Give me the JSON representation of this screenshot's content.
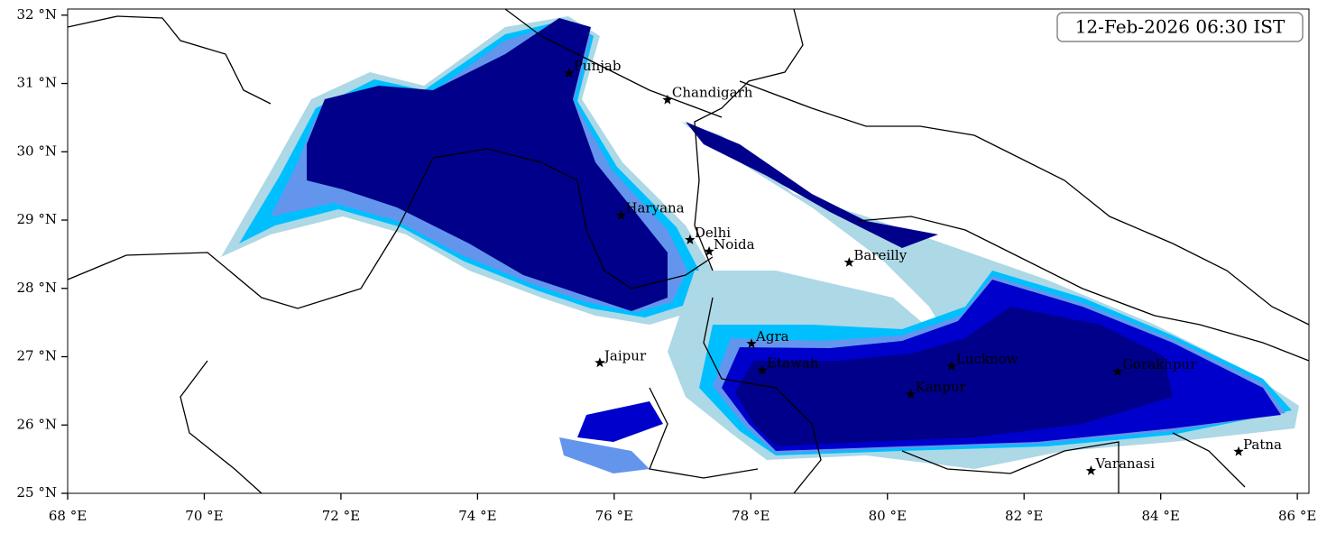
{
  "map": {
    "timestamp": "12-Feb-2026 06:30 IST",
    "xlim": [
      68,
      86.17
    ],
    "ylim": [
      25,
      32.09
    ],
    "xticks": [
      {
        "value": 68,
        "label": "68 °E"
      },
      {
        "value": 70,
        "label": "70 °E"
      },
      {
        "value": 72,
        "label": "72 °E"
      },
      {
        "value": 74,
        "label": "74 °E"
      },
      {
        "value": 76,
        "label": "76 °E"
      },
      {
        "value": 78,
        "label": "78 °E"
      },
      {
        "value": 80,
        "label": "80 °E"
      },
      {
        "value": 82,
        "label": "82 °E"
      },
      {
        "value": 84,
        "label": "84 °E"
      },
      {
        "value": 86,
        "label": "86 °E"
      }
    ],
    "yticks": [
      {
        "value": 25,
        "label": "25 °N"
      },
      {
        "value": 26,
        "label": "26 °N"
      },
      {
        "value": 27,
        "label": "27 °N"
      },
      {
        "value": 28,
        "label": "28 °N"
      },
      {
        "value": 29,
        "label": "29 °N"
      },
      {
        "value": 30,
        "label": "30 °N"
      },
      {
        "value": 31,
        "label": "31 °N"
      },
      {
        "value": 32,
        "label": "32 °N"
      }
    ],
    "cities": [
      {
        "name": "Punjab",
        "lon": 75.34,
        "lat": 31.15
      },
      {
        "name": "Chandigarh",
        "lon": 76.78,
        "lat": 30.76
      },
      {
        "name": "Haryana",
        "lon": 76.1,
        "lat": 29.07
      },
      {
        "name": "Delhi",
        "lon": 77.11,
        "lat": 28.71
      },
      {
        "name": "Noida",
        "lon": 77.39,
        "lat": 28.54
      },
      {
        "name": "Bareilly",
        "lon": 79.44,
        "lat": 28.38
      },
      {
        "name": "Jaipur",
        "lon": 75.79,
        "lat": 26.91
      },
      {
        "name": "Agra",
        "lon": 78.01,
        "lat": 27.19
      },
      {
        "name": "Etawah",
        "lon": 78.17,
        "lat": 26.8
      },
      {
        "name": "Kanpur",
        "lon": 80.34,
        "lat": 26.45
      },
      {
        "name": "Lucknow",
        "lon": 80.94,
        "lat": 26.86
      },
      {
        "name": "Gorakhpur",
        "lon": 83.37,
        "lat": 26.78
      },
      {
        "name": "Varanasi",
        "lon": 82.98,
        "lat": 25.33
      },
      {
        "name": "Patna",
        "lon": 85.14,
        "lat": 25.61
      }
    ]
  }
}
